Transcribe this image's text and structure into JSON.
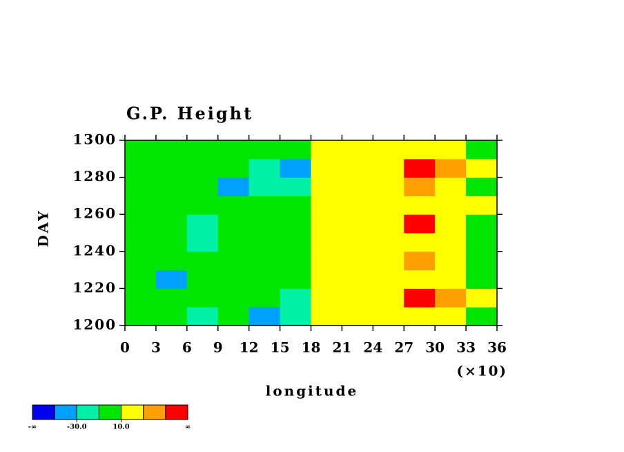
{
  "chart_data": {
    "type": "heatmap",
    "title": "G.P. Height",
    "x_label": "longitude",
    "x_multiplier": "(×10)",
    "y_label": "DAY",
    "x": [
      15,
      45,
      75,
      105,
      135,
      165,
      195,
      225,
      255,
      285,
      315,
      345
    ],
    "y": [
      1205,
      1215,
      1225,
      1235,
      1245,
      1255,
      1265,
      1275,
      1285,
      1295
    ],
    "values": [
      [
        0,
        -5,
        -15,
        0,
        -40,
        -15,
        20,
        15,
        15,
        20,
        15,
        5
      ],
      [
        5,
        0,
        0,
        0,
        -5,
        -15,
        20,
        15,
        15,
        55,
        35,
        15
      ],
      [
        0,
        -35,
        -5,
        0,
        0,
        -5,
        15,
        10,
        15,
        10,
        15,
        5
      ],
      [
        5,
        0,
        0,
        -5,
        0,
        0,
        15,
        15,
        20,
        35,
        15,
        5
      ],
      [
        0,
        5,
        -15,
        0,
        0,
        0,
        15,
        15,
        15,
        20,
        10,
        5
      ],
      [
        0,
        -5,
        -15,
        0,
        -5,
        -5,
        20,
        20,
        15,
        55,
        20,
        5
      ],
      [
        5,
        0,
        0,
        0,
        0,
        0,
        15,
        15,
        15,
        20,
        15,
        15
      ],
      [
        0,
        0,
        -5,
        -35,
        -15,
        -15,
        20,
        15,
        20,
        35,
        15,
        5
      ],
      [
        5,
        0,
        0,
        -5,
        -15,
        -40,
        15,
        15,
        15,
        55,
        35,
        10
      ],
      [
        0,
        0,
        -5,
        0,
        -5,
        5,
        15,
        15,
        10,
        20,
        15,
        5
      ]
    ],
    "levels": [
      -50,
      -30,
      -10,
      10,
      30,
      50
    ],
    "colors": [
      "#0000f0",
      "#00a0ff",
      "#00f0a8",
      "#00e600",
      "#ffff00",
      "#ffa000",
      "#ff0000"
    ],
    "colorbar_labels": [
      {
        "value": -30,
        "label": "-30.0"
      },
      {
        "value": 10,
        "label": "10.0"
      }
    ],
    "colorbar_low": "-∞",
    "colorbar_high": "∞",
    "xlim": [
      0,
      360
    ],
    "xticks": [
      0,
      {
        "value": 30,
        "label": "3"
      },
      {
        "value": 60,
        "label": "6"
      },
      {
        "value": 90,
        "label": "9"
      },
      {
        "value": 120,
        "label": "12"
      },
      {
        "value": 150,
        "label": "15"
      },
      {
        "value": 180,
        "label": "18"
      },
      {
        "value": 210,
        "label": "21"
      },
      {
        "value": 240,
        "label": "24"
      },
      {
        "value": 270,
        "label": "27"
      },
      {
        "value": 300,
        "label": "30"
      },
      {
        "value": 330,
        "label": "33"
      },
      {
        "value": 360,
        "label": "36"
      }
    ],
    "ylim": [
      1200,
      1300
    ],
    "yticks": [
      1200,
      1220,
      1240,
      1260,
      1280,
      1300
    ]
  }
}
